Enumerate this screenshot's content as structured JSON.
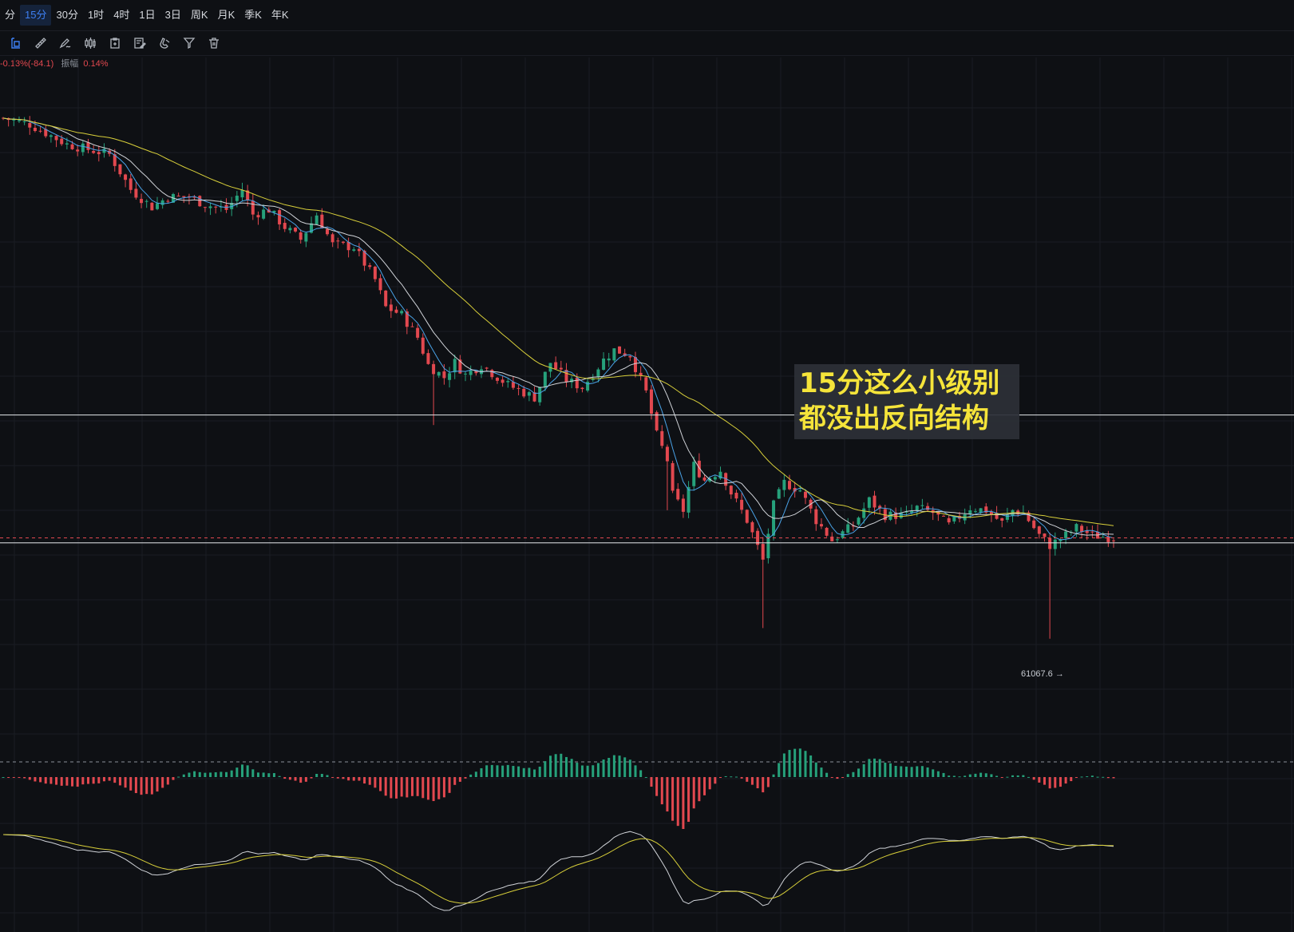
{
  "timeframes": {
    "items": [
      "分",
      "15分",
      "30分",
      "1时",
      "4时",
      "1日",
      "3日",
      "周K",
      "月K",
      "季K",
      "年K"
    ],
    "active_index": 1
  },
  "toolbar": {
    "tools": [
      "select-icon",
      "ruler-icon",
      "pen-draw-icon",
      "candlestick-icon",
      "clipboard-icon",
      "edit-note-icon",
      "magnet-icon",
      "filter-icon",
      "trash-icon"
    ]
  },
  "info": {
    "change_text": "-0.13%(-84.1)",
    "amplitude_label": "振幅",
    "amplitude_value": "0.14%"
  },
  "annotation": {
    "line1": "15分这么小级别",
    "line2": "都没出反向结构"
  },
  "price_marker": {
    "label": "61067.6 →"
  },
  "colors": {
    "up": "#26a17b",
    "down": "#e2484f",
    "ma_fast": "#4aa3e8",
    "ma_mid": "#d0d3d8",
    "ma_slow": "#d8cf3a",
    "dif": "#d0d3d8",
    "dea": "#d8cf3a"
  },
  "chart_data": {
    "type": "candlestick",
    "title": "",
    "price_range": [
      60850,
      63240
    ],
    "low_value": 61067.6,
    "horizontal_levels": [
      61960,
      61450
    ],
    "current_price": 61470,
    "trend_path": [
      [
        0,
        63145
      ],
      [
        5,
        63120
      ],
      [
        12,
        63040
      ],
      [
        20,
        63000
      ],
      [
        24,
        62860
      ],
      [
        28,
        62790
      ],
      [
        31,
        62830
      ],
      [
        35,
        62830
      ],
      [
        38,
        62800
      ],
      [
        42,
        62780
      ],
      [
        45,
        62860
      ],
      [
        47,
        62760
      ],
      [
        50,
        62780
      ],
      [
        53,
        62710
      ],
      [
        56,
        62660
      ],
      [
        59,
        62760
      ],
      [
        62,
        62640
      ],
      [
        66,
        62630
      ],
      [
        70,
        62500
      ],
      [
        72,
        62390
      ],
      [
        75,
        62360
      ],
      [
        78,
        62270
      ],
      [
        80,
        62160
      ],
      [
        83,
        62110
      ],
      [
        85,
        62170
      ],
      [
        87,
        62120
      ],
      [
        90,
        62160
      ],
      [
        95,
        62080
      ],
      [
        100,
        62030
      ],
      [
        103,
        62170
      ],
      [
        106,
        62100
      ],
      [
        109,
        62070
      ],
      [
        113,
        62180
      ],
      [
        115,
        62220
      ],
      [
        118,
        62200
      ],
      [
        121,
        62050
      ],
      [
        123,
        61880
      ],
      [
        125,
        61780
      ],
      [
        126,
        61640
      ],
      [
        128,
        61580
      ],
      [
        130,
        61760
      ],
      [
        132,
        61700
      ],
      [
        135,
        61740
      ],
      [
        137,
        61650
      ],
      [
        140,
        61540
      ],
      [
        143,
        61380
      ],
      [
        145,
        61600
      ],
      [
        147,
        61690
      ],
      [
        150,
        61660
      ],
      [
        153,
        61540
      ],
      [
        156,
        61460
      ],
      [
        160,
        61520
      ],
      [
        163,
        61620
      ],
      [
        166,
        61560
      ],
      [
        170,
        61560
      ],
      [
        172,
        61590
      ],
      [
        175,
        61570
      ],
      [
        178,
        61520
      ],
      [
        182,
        61590
      ],
      [
        185,
        61580
      ],
      [
        188,
        61530
      ],
      [
        190,
        61580
      ],
      [
        192,
        61570
      ],
      [
        195,
        61480
      ],
      [
        197,
        61440
      ],
      [
        200,
        61480
      ],
      [
        202,
        61510
      ],
      [
        205,
        61480
      ],
      [
        209,
        61470
      ]
    ]
  },
  "macd_data": {
    "type": "bar",
    "hist_range": [
      -1,
      1
    ],
    "line_range": [
      -1,
      1
    ]
  }
}
